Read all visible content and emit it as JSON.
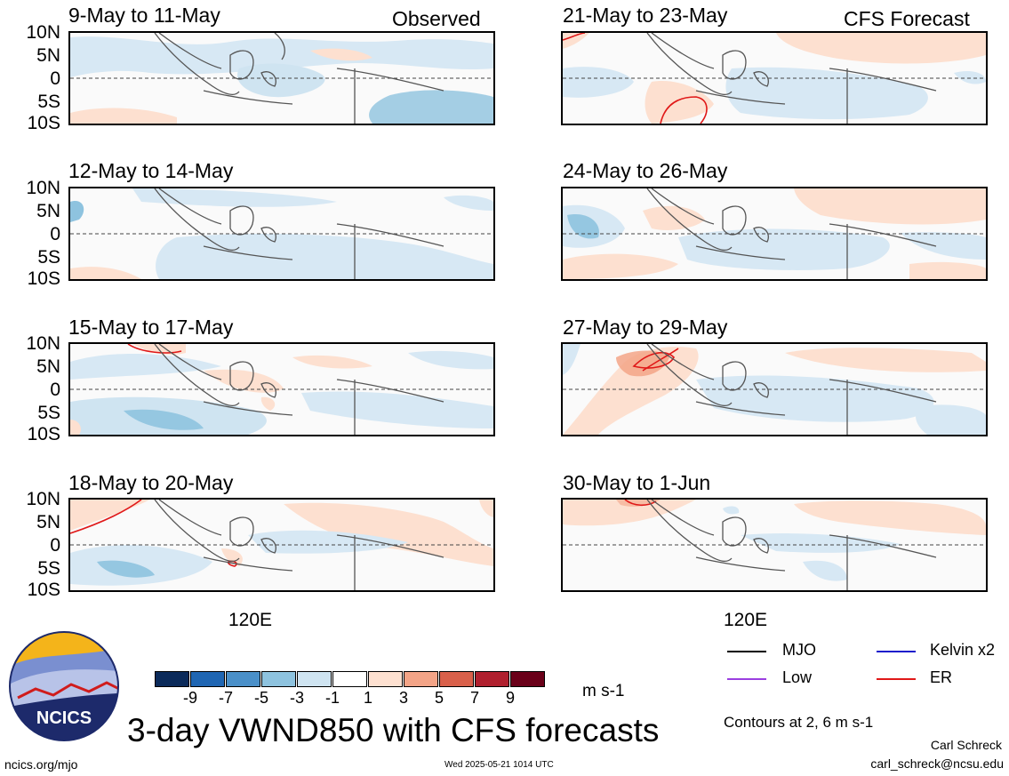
{
  "header": {
    "observed_label": "Observed",
    "forecast_label": "CFS Forecast"
  },
  "lat_ticks": [
    "10N",
    "5N",
    "0",
    "5S",
    "10S"
  ],
  "lon_tick": "120E",
  "panels": [
    {
      "title": "9-May to 11-May"
    },
    {
      "title": "12-May to 14-May"
    },
    {
      "title": "15-May to 17-May"
    },
    {
      "title": "18-May to 20-May"
    },
    {
      "title": "21-May to 23-May"
    },
    {
      "title": "24-May to 26-May"
    },
    {
      "title": "27-May to 29-May"
    },
    {
      "title": "30-May to 1-Jun"
    }
  ],
  "colorbar": {
    "colors": [
      "#0b2a5a",
      "#1f66b3",
      "#4a90c9",
      "#8ec3df",
      "#cfe4f1",
      "#ffffff",
      "#fde0d0",
      "#f3a487",
      "#d9604a",
      "#b01f2e",
      "#6a0019"
    ],
    "ticks": [
      "-9",
      "-7",
      "-5",
      "-3",
      "-1",
      "1",
      "3",
      "5",
      "7",
      "9"
    ],
    "units": "m s-1"
  },
  "legend": {
    "items": [
      {
        "label": "MJO",
        "color": "#000000"
      },
      {
        "label": "Kelvin x2",
        "color": "#1a1acc"
      },
      {
        "label": "Low",
        "color": "#9b3fe0"
      },
      {
        "label": "ER",
        "color": "#e01818"
      }
    ],
    "contours_note": "Contours at 2, 6 m s-1"
  },
  "footer": {
    "main_title": "3-day VWND850 with CFS forecasts",
    "logo_text": "NCICS",
    "url": "ncics.org/mjo",
    "timestamp": "Wed 2025-05-21 1014 UTC",
    "author": "Carl Schreck",
    "email": "carl_schreck@ncsu.edu"
  }
}
